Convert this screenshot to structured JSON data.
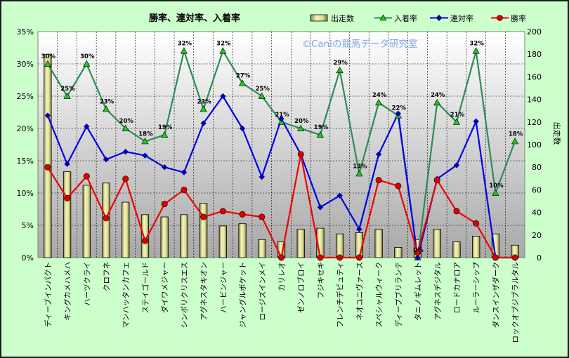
{
  "chart_data": {
    "type": "bar",
    "title": "勝率、連対率、入着率",
    "watermark": "©Caniの競馬データ研究室",
    "y2label": "出走数",
    "ylim": [
      0,
      35
    ],
    "y2lim": [
      0,
      200
    ],
    "yticks": [
      "0%",
      "5%",
      "10%",
      "15%",
      "20%",
      "25%",
      "30%",
      "35%"
    ],
    "y2ticks": [
      "0",
      "20",
      "40",
      "60",
      "80",
      "100",
      "120",
      "140",
      "160",
      "180",
      "200"
    ],
    "legend_position": "top",
    "categories": [
      "ディープインパクト",
      "キングカメハメハ",
      "ハーツクライ",
      "クロフネ",
      "マンハッタンカフェ",
      "ステイゴールド",
      "ダイワメジャー",
      "シンボリクリスエス",
      "アグネスタキオン",
      "ハービンジャー",
      "ジャングルポケット",
      "ロージズインメイ",
      "カリレオ",
      "ゼンノロブロイ",
      "フジキセキ",
      "フレンチデピュティ",
      "ネオユニヴァース",
      "スペシャルウィーク",
      "ディープブリランテ",
      "タニノギムレット",
      "アグネスデジタル",
      "ロードカナロア",
      "ルーラーシップ",
      "ダンスインザダーク",
      "ロックオブジブラルタル"
    ],
    "series": [
      {
        "name": "出走数",
        "kind": "bar",
        "axis": "right",
        "color": "#e8e8a8",
        "values": [
          180,
          76,
          64,
          66,
          49,
          38,
          36,
          38,
          48,
          28,
          30,
          16,
          14,
          25,
          26,
          21,
          22,
          25,
          9,
          16,
          25,
          14,
          19,
          21,
          11
        ]
      },
      {
        "name": "入着率",
        "kind": "line",
        "axis": "left",
        "color": "#2e8b57",
        "marker": "triangle",
        "marker_color": "#1ec81e",
        "values": [
          30,
          25,
          30,
          23,
          20,
          18,
          19,
          32,
          23,
          32,
          27,
          25,
          21,
          20,
          19,
          29,
          13,
          24,
          22,
          0,
          24,
          21,
          32,
          10,
          18
        ],
        "labels": [
          "30%",
          "25%",
          "30%",
          "23%",
          "20%",
          "18%",
          "19%",
          "32%",
          "23%",
          "32%",
          "27%",
          "25%",
          "21%",
          "20%",
          "19%",
          "29%",
          "13%",
          "24%",
          "22%",
          "0%",
          "24%",
          "21%",
          "32%",
          "10%",
          "18%"
        ]
      },
      {
        "name": "連対率",
        "kind": "line",
        "axis": "left",
        "color": "#0000ee",
        "marker": "diamond",
        "marker_color": "#0000aa",
        "values": [
          22,
          14.5,
          20.3,
          15.2,
          16.4,
          15.8,
          14,
          13.2,
          20.8,
          25,
          20,
          12.5,
          21.5,
          16,
          7.8,
          9.6,
          4.4,
          16,
          22.3,
          0,
          12.2,
          14.3,
          21.1,
          0,
          0
        ]
      },
      {
        "name": "勝率",
        "kind": "line",
        "axis": "left",
        "color": "#ee0000",
        "marker": "circle",
        "marker_color": "#dd0000",
        "values": [
          14,
          9.2,
          12.6,
          6.1,
          12.2,
          2.6,
          8.3,
          10.5,
          6.3,
          7.2,
          6.7,
          6.3,
          0,
          16,
          0,
          0,
          0,
          12,
          11.1,
          0.8,
          12,
          7.2,
          5.3,
          0,
          0
        ]
      }
    ]
  }
}
